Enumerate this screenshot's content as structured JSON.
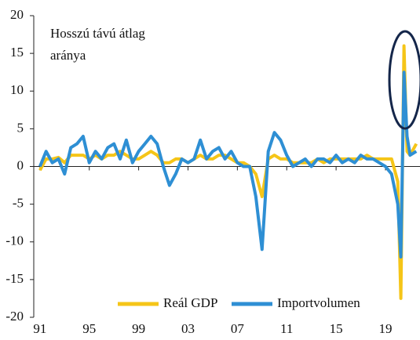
{
  "chart_data": {
    "type": "line",
    "annotation": [
      "Hosszú távú átlag",
      "aránya"
    ],
    "x": [
      1991,
      1991.5,
      1992,
      1992.5,
      1993,
      1993.5,
      1994,
      1994.5,
      1995,
      1995.5,
      1996,
      1996.5,
      1997,
      1997.5,
      1998,
      1998.5,
      1999,
      1999.5,
      2000,
      2000.5,
      2001,
      2001.5,
      2002,
      2002.5,
      2003,
      2003.5,
      2004,
      2004.5,
      2005,
      2005.5,
      2006,
      2006.5,
      2007,
      2007.5,
      2008,
      2008.5,
      2009,
      2009.5,
      2010,
      2010.5,
      2011,
      2011.5,
      2012,
      2012.5,
      2013,
      2013.5,
      2014,
      2014.5,
      2015,
      2015.5,
      2016,
      2016.5,
      2017,
      2017.5,
      2018,
      2018.5,
      2019,
      2019.5,
      2020,
      2020.25,
      2020.5,
      2020.75,
      2021,
      2021.5
    ],
    "series": [
      {
        "name": "Reál GDP",
        "color": "#f5c518",
        "values": [
          -0.5,
          1,
          1,
          1.2,
          0.5,
          1.5,
          1.5,
          1.5,
          1,
          1.5,
          1,
          1.5,
          1.5,
          2,
          1.5,
          1,
          1,
          1.5,
          2,
          1.5,
          0.5,
          0.5,
          1,
          1,
          0.5,
          1,
          1.5,
          1,
          1,
          1.5,
          1.5,
          1,
          0.5,
          0.5,
          0,
          -1,
          -4,
          1,
          1.5,
          1,
          1,
          0.5,
          0.5,
          0.5,
          0.5,
          1,
          0.5,
          1,
          1,
          1,
          1,
          1,
          1,
          1.5,
          1,
          1,
          1,
          1,
          -2,
          -17.5,
          16,
          2,
          1.5,
          3
        ]
      },
      {
        "name": "Importvolumen",
        "color": "#2e8fd4",
        "values": [
          0,
          2,
          0.5,
          1,
          -1,
          2.5,
          3,
          4,
          0.5,
          2,
          1,
          2.5,
          3,
          1,
          3.5,
          0.5,
          2,
          3,
          4,
          3,
          0,
          -2.5,
          -1,
          1,
          0.5,
          1,
          3.5,
          1,
          2,
          2.5,
          1,
          2,
          0.5,
          0,
          0,
          -4,
          -11,
          2,
          4.5,
          3.5,
          1.5,
          0,
          0.5,
          1,
          0,
          1,
          1,
          0.5,
          1.5,
          0.5,
          1,
          0.5,
          1.5,
          1,
          1,
          0.5,
          0,
          -1,
          -5,
          -12,
          12.5,
          4,
          1.5,
          2
        ]
      }
    ],
    "xlim": [
      1990.5,
      2021.8
    ],
    "xticks": [
      {
        "value": 1991,
        "label": "91"
      },
      {
        "value": 1995,
        "label": "95"
      },
      {
        "value": 1999,
        "label": "99"
      },
      {
        "value": 2003,
        "label": "03"
      },
      {
        "value": 2007,
        "label": "07"
      },
      {
        "value": 2011,
        "label": "11"
      },
      {
        "value": 2015,
        "label": "15"
      },
      {
        "value": 2019,
        "label": "19"
      }
    ],
    "ylim": [
      -20,
      20
    ],
    "yticks": [
      -20,
      -15,
      -10,
      -5,
      0,
      5,
      10,
      15,
      20
    ]
  }
}
